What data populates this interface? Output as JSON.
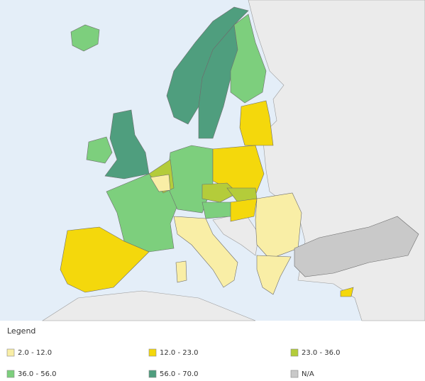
{
  "legend": {
    "title": "Legend",
    "items": [
      {
        "label": "2.0 - 12.0",
        "color": "#f9eea6"
      },
      {
        "label": "12.0 - 23.0",
        "color": "#f4d80c"
      },
      {
        "label": "23.0 - 36.0",
        "color": "#b4cc3a"
      },
      {
        "label": "36.0 - 56.0",
        "color": "#7dcf7d"
      },
      {
        "label": "56.0 - 70.0",
        "color": "#4f9e7e"
      },
      {
        "label": "N/A",
        "color": "#c9c9c9"
      }
    ]
  }
}
